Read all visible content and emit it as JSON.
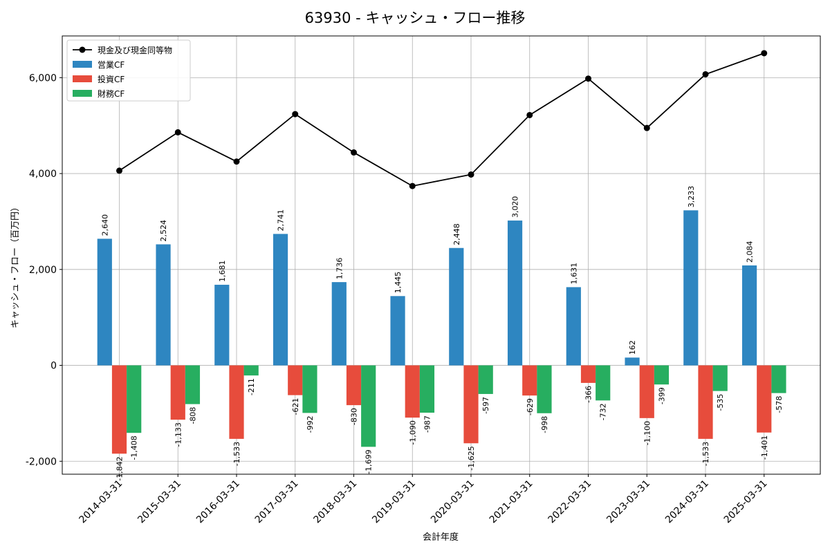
{
  "chart_data": {
    "type": "bar",
    "title": "63930 - キャッシュ・フロー推移",
    "xlabel": "会計年度",
    "ylabel": "キャッシュ・フロー（百万円）",
    "categories": [
      "2014-03-31",
      "2015-03-31",
      "2016-03-31",
      "2017-03-31",
      "2018-03-31",
      "2019-03-31",
      "2020-03-31",
      "2021-03-31",
      "2022-03-31",
      "2023-03-31",
      "2024-03-31",
      "2025-03-31"
    ],
    "series": [
      {
        "name": "営業CF",
        "kind": "bar",
        "color": "#2e86c1",
        "values": [
          2640,
          2524,
          1681,
          2741,
          1736,
          1445,
          2448,
          3020,
          1631,
          162,
          3233,
          2084
        ],
        "labels": [
          "2,640",
          "2,524",
          "1,681",
          "2,741",
          "1,736",
          "1,445",
          "2,448",
          "3,020",
          "1,631",
          "162",
          "3,233",
          "2,084"
        ]
      },
      {
        "name": "投資CF",
        "kind": "bar",
        "color": "#e74c3c",
        "values": [
          -1842,
          -1133,
          -1533,
          -621,
          -830,
          -1090,
          -1625,
          -629,
          -366,
          -1100,
          -1533,
          -1401
        ],
        "labels": [
          "-1,842",
          "-1,133",
          "-1,533",
          "-621",
          "-830",
          "-1,090",
          "-1,625",
          "-629",
          "-366",
          "-1,100",
          "-1,533",
          "-1,401"
        ]
      },
      {
        "name": "財務CF",
        "kind": "bar",
        "color": "#27ae60",
        "values": [
          -1408,
          -808,
          -211,
          -992,
          -1699,
          -987,
          -597,
          -998,
          -732,
          -399,
          -535,
          -578
        ],
        "labels": [
          "-1,408",
          "-808",
          "-211",
          "-992",
          "-1,699",
          "-987",
          "-597",
          "-998",
          "-732",
          "-399",
          "-535",
          "-578"
        ]
      },
      {
        "name": "現金及び現金同等物",
        "kind": "line",
        "color": "#000000",
        "values": [
          4060,
          4860,
          4250,
          5240,
          4440,
          3740,
          3980,
          5220,
          5980,
          4950,
          6070,
          6510
        ]
      }
    ],
    "yticks": [
      -2000,
      0,
      2000,
      4000,
      6000
    ],
    "ytick_labels": [
      "-2,000",
      "0",
      "2,000",
      "4,000",
      "6,000"
    ],
    "ylim": [
      -2270,
      6870
    ],
    "grid": true,
    "legend_position": "top-left"
  }
}
